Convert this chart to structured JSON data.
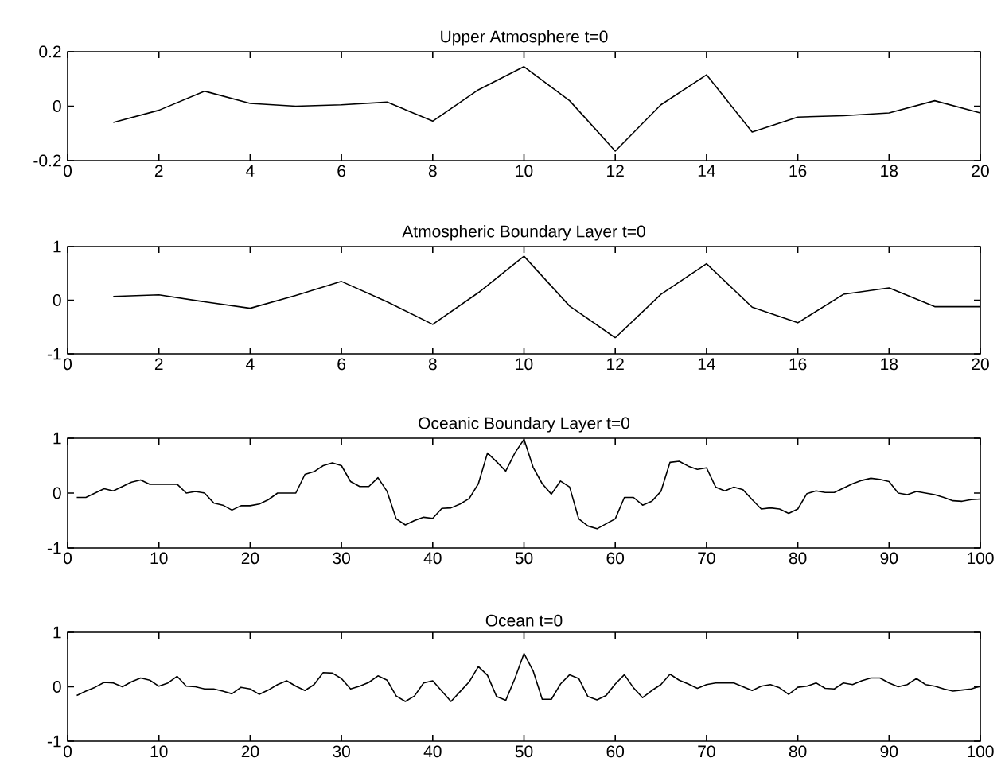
{
  "chart_data": [
    {
      "type": "line",
      "title": "Upper Atmosphere t=0",
      "color": "#000000",
      "x": [
        1,
        2,
        3,
        4,
        5,
        6,
        7,
        8,
        9,
        10,
        11,
        12,
        13,
        14,
        15,
        16,
        17,
        18,
        19,
        20
      ],
      "values": [
        -0.06,
        -0.015,
        0.055,
        0.01,
        0,
        0.005,
        0.015,
        -0.055,
        0.06,
        0.145,
        0.02,
        -0.165,
        0.005,
        0.115,
        -0.095,
        -0.04,
        -0.035,
        -0.025,
        0.02,
        -0.025
      ],
      "xlim": [
        0,
        20
      ],
      "ylim": [
        -0.2,
        0.2
      ],
      "xticks": [
        0,
        2,
        4,
        6,
        8,
        10,
        12,
        14,
        16,
        18,
        20
      ],
      "yticks": [
        -0.2,
        0,
        0.2
      ]
    },
    {
      "type": "line",
      "title": "Atmospheric Boundary Layer t=0",
      "color": "#000000",
      "x": [
        1,
        2,
        3,
        4,
        5,
        6,
        7,
        8,
        9,
        10,
        11,
        12,
        13,
        14,
        15,
        16,
        17,
        18,
        19,
        20
      ],
      "values": [
        0.07,
        0.1,
        -0.03,
        -0.15,
        0.09,
        0.35,
        -0.03,
        -0.45,
        0.14,
        0.82,
        -0.11,
        -0.7,
        0.11,
        0.68,
        -0.13,
        -0.42,
        0.11,
        0.23,
        -0.12,
        -0.12
      ],
      "xlim": [
        0,
        20
      ],
      "ylim": [
        -1,
        1
      ],
      "xticks": [
        0,
        2,
        4,
        6,
        8,
        10,
        12,
        14,
        16,
        18,
        20
      ],
      "yticks": [
        -1,
        0,
        1
      ]
    },
    {
      "type": "line",
      "title": "Oceanic Boundary Layer t=0",
      "color": "#000000",
      "x": [
        1,
        2,
        3,
        4,
        5,
        6,
        7,
        8,
        9,
        10,
        11,
        12,
        13,
        14,
        15,
        16,
        17,
        18,
        19,
        20,
        21,
        22,
        23,
        24,
        25,
        26,
        27,
        28,
        29,
        30,
        31,
        32,
        33,
        34,
        35,
        36,
        37,
        38,
        39,
        40,
        41,
        42,
        43,
        44,
        45,
        46,
        47,
        48,
        49,
        50,
        51,
        52,
        53,
        54,
        55,
        56,
        57,
        58,
        59,
        60,
        61,
        62,
        63,
        64,
        65,
        66,
        67,
        68,
        69,
        70,
        71,
        72,
        73,
        74,
        75,
        76,
        77,
        78,
        79,
        80,
        81,
        82,
        83,
        84,
        85,
        86,
        87,
        88,
        89,
        90,
        91,
        92,
        93,
        94,
        95,
        96,
        97,
        98,
        99,
        100
      ],
      "values": [
        -0.08,
        -0.08,
        0,
        0.08,
        0.04,
        0.12,
        0.2,
        0.24,
        0.16,
        0.16,
        0.16,
        0.16,
        0,
        0.03,
        0,
        -0.18,
        -0.22,
        -0.31,
        -0.23,
        -0.23,
        -0.2,
        -0.12,
        0,
        0,
        0,
        0.34,
        0.39,
        0.5,
        0.55,
        0.5,
        0.21,
        0.12,
        0.12,
        0.28,
        0.03,
        -0.47,
        -0.58,
        -0.5,
        -0.44,
        -0.46,
        -0.28,
        -0.27,
        -0.2,
        -0.1,
        0.17,
        0.73,
        0.57,
        0.4,
        0.73,
        0.98,
        0.47,
        0.17,
        -0.02,
        0.22,
        0.11,
        -0.47,
        -0.6,
        -0.65,
        -0.56,
        -0.47,
        -0.08,
        -0.08,
        -0.22,
        -0.15,
        0.03,
        0.56,
        0.58,
        0.49,
        0.43,
        0.46,
        0.11,
        0.04,
        0.11,
        0.06,
        -0.12,
        -0.29,
        -0.27,
        -0.29,
        -0.37,
        -0.29,
        -0.01,
        0.04,
        0.01,
        0.01,
        0.09,
        0.17,
        0.23,
        0.27,
        0.25,
        0.21,
        0,
        -0.03,
        0.03,
        0,
        -0.03,
        -0.08,
        -0.14,
        -0.15,
        -0.12,
        -0.11
      ],
      "xlim": [
        0,
        100
      ],
      "ylim": [
        -1,
        1
      ],
      "xticks": [
        0,
        10,
        20,
        30,
        40,
        50,
        60,
        70,
        80,
        90,
        100
      ],
      "yticks": [
        -1,
        0,
        1
      ]
    },
    {
      "type": "line",
      "title": "Ocean t=0",
      "color": "#000000",
      "x": [
        1,
        2,
        3,
        4,
        5,
        6,
        7,
        8,
        9,
        10,
        11,
        12,
        13,
        14,
        15,
        16,
        17,
        18,
        19,
        20,
        21,
        22,
        23,
        24,
        25,
        26,
        27,
        28,
        29,
        30,
        31,
        32,
        33,
        34,
        35,
        36,
        37,
        38,
        39,
        40,
        41,
        42,
        43,
        44,
        45,
        46,
        47,
        48,
        49,
        50,
        51,
        52,
        53,
        54,
        55,
        56,
        57,
        58,
        59,
        60,
        61,
        62,
        63,
        64,
        65,
        66,
        67,
        68,
        69,
        70,
        71,
        72,
        73,
        74,
        75,
        76,
        77,
        78,
        79,
        80,
        81,
        82,
        83,
        84,
        85,
        86,
        87,
        88,
        89,
        90,
        91,
        92,
        93,
        94,
        95,
        96,
        97,
        98,
        99,
        100
      ],
      "values": [
        -0.16,
        -0.08,
        -0.01,
        0.08,
        0.07,
        0,
        0.09,
        0.16,
        0.12,
        0.01,
        0.07,
        0.19,
        0.01,
        0,
        -0.04,
        -0.04,
        -0.08,
        -0.13,
        -0.01,
        -0.04,
        -0.14,
        -0.06,
        0.04,
        0.11,
        0.01,
        -0.07,
        0.04,
        0.26,
        0.25,
        0.15,
        -0.04,
        0.01,
        0.08,
        0.2,
        0.12,
        -0.17,
        -0.27,
        -0.17,
        0.07,
        0.11,
        -0.08,
        -0.27,
        -0.09,
        0.09,
        0.37,
        0.21,
        -0.18,
        -0.25,
        0.15,
        0.61,
        0.29,
        -0.23,
        -0.23,
        0.05,
        0.22,
        0.15,
        -0.18,
        -0.24,
        -0.16,
        0.05,
        0.22,
        -0.02,
        -0.2,
        -0.07,
        0.04,
        0.23,
        0.12,
        0.05,
        -0.03,
        0.04,
        0.07,
        0.07,
        0.07,
        0,
        -0.07,
        0.01,
        0.04,
        -0.02,
        -0.14,
        -0.01,
        0.01,
        0.07,
        -0.03,
        -0.04,
        0.07,
        0.04,
        0.11,
        0.16,
        0.16,
        0.07,
        0,
        0.04,
        0.15,
        0.04,
        0.01,
        -0.04,
        -0.08,
        -0.06,
        -0.04,
        0.01
      ],
      "xlim": [
        0,
        100
      ],
      "ylim": [
        -1,
        1
      ],
      "xticks": [
        0,
        10,
        20,
        30,
        40,
        50,
        60,
        70,
        80,
        90,
        100
      ],
      "yticks": [
        -1,
        0,
        1
      ]
    }
  ]
}
